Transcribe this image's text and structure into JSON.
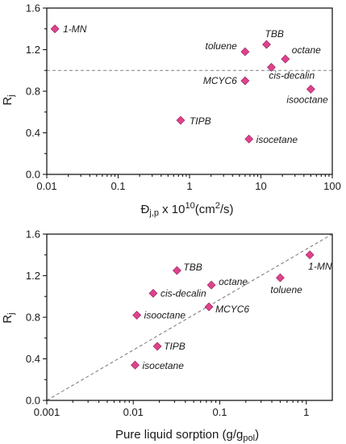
{
  "chart_data": [
    {
      "type": "scatter",
      "title": "",
      "xlabel": {
        "main": "Đ",
        "sub": "j,p",
        "mid": " x 10",
        "sup": "10",
        "tail": "(cm",
        "sup2": "2",
        "end": "/s)"
      },
      "ylabel": {
        "main": "R",
        "sub": "j"
      },
      "xscale": "log",
      "xlim": [
        0.01,
        100
      ],
      "ylim": [
        0.0,
        1.6
      ],
      "xticks": [
        0.01,
        0.1,
        1,
        10,
        100
      ],
      "xtick_labels": [
        "0.01",
        "0.1",
        "1",
        "10",
        "100"
      ],
      "yticks": [
        0.0,
        0.4,
        0.8,
        1.2,
        1.6
      ],
      "ytick_labels": [
        "0.0",
        "0.4",
        "0.8",
        "1.2",
        "1.6"
      ],
      "grid": false,
      "marker": "diamond",
      "marker_color": "#e0428c",
      "reference_line": {
        "type": "horizontal",
        "y": 1.0,
        "style": "dashed",
        "color": "#808080"
      },
      "points": [
        {
          "label": "1-MN",
          "x": 0.013,
          "y": 1.4
        },
        {
          "label": "TBB",
          "x": 12.0,
          "y": 1.25
        },
        {
          "label": "toluene",
          "x": 6.0,
          "y": 1.18
        },
        {
          "label": "octane",
          "x": 22.0,
          "y": 1.11
        },
        {
          "label": "cis-decalin",
          "x": 14.0,
          "y": 1.03
        },
        {
          "label": "MCYC6",
          "x": 6.0,
          "y": 0.9
        },
        {
          "label": "isooctane",
          "x": 50.0,
          "y": 0.82
        },
        {
          "label": "TIPB",
          "x": 0.75,
          "y": 0.52
        },
        {
          "label": "isocetane",
          "x": 6.8,
          "y": 0.34
        }
      ]
    },
    {
      "type": "scatter",
      "title": "",
      "xlabel": {
        "main": "Pure liquid sorption (g/g",
        "sub": "pol",
        "end": ")"
      },
      "ylabel": {
        "main": "R",
        "sub": "j"
      },
      "xscale": "log",
      "xlim": [
        0.001,
        2
      ],
      "ylim": [
        0.0,
        1.6
      ],
      "xticks": [
        0.001,
        0.01,
        0.1,
        1
      ],
      "xtick_labels": [
        "0.001",
        "0.01",
        "0.1",
        "1"
      ],
      "yticks": [
        0.0,
        0.4,
        0.8,
        1.2,
        1.6
      ],
      "ytick_labels": [
        "0.0",
        "0.4",
        "0.8",
        "1.2",
        "1.6"
      ],
      "grid": false,
      "marker": "diamond",
      "marker_color": "#e0428c",
      "reference_line": {
        "type": "diagonal",
        "from": [
          0.001,
          0.0
        ],
        "to": [
          2,
          1.6
        ],
        "style": "dashed",
        "color": "#808080"
      },
      "points": [
        {
          "label": "TBB",
          "x": 0.032,
          "y": 1.25
        },
        {
          "label": "1-MN",
          "x": 1.1,
          "y": 1.4
        },
        {
          "label": "toluene",
          "x": 0.5,
          "y": 1.18
        },
        {
          "label": "octane",
          "x": 0.08,
          "y": 1.11
        },
        {
          "label": "cis-decalin",
          "x": 0.017,
          "y": 1.03
        },
        {
          "label": "MCYC6",
          "x": 0.075,
          "y": 0.9
        },
        {
          "label": "isooctane",
          "x": 0.011,
          "y": 0.82
        },
        {
          "label": "TIPB",
          "x": 0.019,
          "y": 0.52
        },
        {
          "label": "isocetane",
          "x": 0.0105,
          "y": 0.34
        }
      ]
    }
  ]
}
